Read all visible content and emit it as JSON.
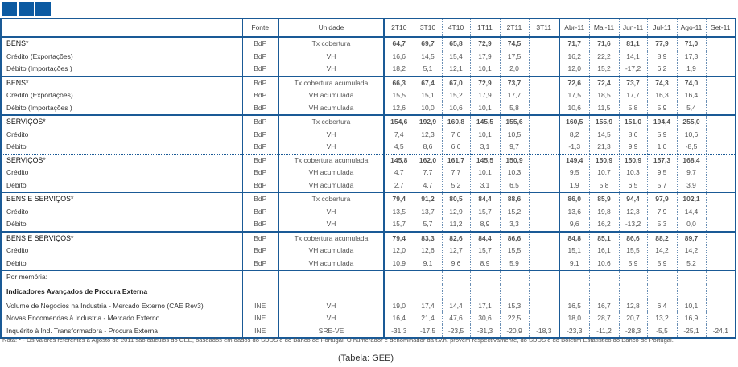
{
  "header": {
    "fonte": "Fonte",
    "unidade": "Unidade",
    "quarters": [
      "2T10",
      "3T10",
      "4T10",
      "1T11",
      "2T11",
      "3T11"
    ],
    "months": [
      "Abr-11",
      "Mai-11",
      "Jun-11",
      "Jul-11",
      "Ago-11",
      "Set-11"
    ]
  },
  "groups": [
    {
      "sep": "solid",
      "rows": [
        {
          "label": "BENS*",
          "fonte": "BdP",
          "unidade": "Tx cobertura",
          "bold": true,
          "q": [
            "64,7",
            "69,7",
            "65,8",
            "72,9",
            "74,5",
            ""
          ],
          "m": [
            "71,7",
            "71,6",
            "81,1",
            "77,9",
            "71,0",
            ""
          ]
        },
        {
          "label": "Crédito (Exportações)",
          "fonte": "BdP",
          "unidade": "VH",
          "q": [
            "16,6",
            "14,5",
            "15,4",
            "17,9",
            "17,5",
            ""
          ],
          "m": [
            "16,2",
            "22,2",
            "14,1",
            "8,9",
            "17,3",
            ""
          ]
        },
        {
          "label": "Débito (Importações )",
          "fonte": "BdP",
          "unidade": "VH",
          "q": [
            "18,2",
            "5,1",
            "12,1",
            "10,1",
            "2,0",
            ""
          ],
          "m": [
            "12,0",
            "15,2",
            "-17,2",
            "6,2",
            "1,9",
            ""
          ]
        }
      ]
    },
    {
      "sep": "solid",
      "rows": [
        {
          "label": "BENS*",
          "fonte": "BdP",
          "unidade": "Tx cobertura acumulada",
          "bold": true,
          "q": [
            "66,3",
            "67,4",
            "67,0",
            "72,9",
            "73,7",
            ""
          ],
          "m": [
            "72,6",
            "72,4",
            "73,7",
            "74,3",
            "74,0",
            ""
          ]
        },
        {
          "label": "Crédito (Exportações)",
          "fonte": "BdP",
          "unidade": "VH acumulada",
          "q": [
            "15,5",
            "15,1",
            "15,2",
            "17,9",
            "17,7",
            ""
          ],
          "m": [
            "17,5",
            "18,5",
            "17,7",
            "16,3",
            "16,4",
            ""
          ]
        },
        {
          "label": "Débito (Importações )",
          "fonte": "BdP",
          "unidade": "VH acumulada",
          "q": [
            "12,6",
            "10,0",
            "10,6",
            "10,1",
            "5,8",
            ""
          ],
          "m": [
            "10,6",
            "11,5",
            "5,8",
            "5,9",
            "5,4",
            ""
          ]
        }
      ]
    },
    {
      "sep": "dotted",
      "rows": [
        {
          "label": "SERVIÇOS*",
          "fonte": "BdP",
          "unidade": "Tx cobertura",
          "bold": true,
          "q": [
            "154,6",
            "192,9",
            "160,8",
            "145,5",
            "155,6",
            ""
          ],
          "m": [
            "160,5",
            "155,9",
            "151,0",
            "194,4",
            "255,0",
            ""
          ]
        },
        {
          "label": "Crédito",
          "fonte": "BdP",
          "unidade": "VH",
          "q": [
            "7,4",
            "12,3",
            "7,6",
            "10,1",
            "10,5",
            ""
          ],
          "m": [
            "8,2",
            "14,5",
            "8,6",
            "5,9",
            "10,6",
            ""
          ]
        },
        {
          "label": "Débito",
          "fonte": "BdP",
          "unidade": "VH",
          "q": [
            "4,5",
            "8,6",
            "6,6",
            "3,1",
            "9,7",
            ""
          ],
          "m": [
            "-1,3",
            "21,3",
            "9,9",
            "1,0",
            "-8,5",
            ""
          ]
        }
      ]
    },
    {
      "sep": "solid",
      "rows": [
        {
          "label": "SERVIÇOS*",
          "fonte": "BdP",
          "unidade": "Tx cobertura acumulada",
          "bold": true,
          "q": [
            "145,8",
            "162,0",
            "161,7",
            "145,5",
            "150,9",
            ""
          ],
          "m": [
            "149,4",
            "150,9",
            "150,9",
            "157,3",
            "168,4",
            ""
          ]
        },
        {
          "label": "Crédito",
          "fonte": "BdP",
          "unidade": "VH acumulada",
          "q": [
            "4,7",
            "7,7",
            "7,7",
            "10,1",
            "10,3",
            ""
          ],
          "m": [
            "9,5",
            "10,7",
            "10,3",
            "9,5",
            "9,7",
            ""
          ]
        },
        {
          "label": "Débito",
          "fonte": "BdP",
          "unidade": "VH acumulada",
          "q": [
            "2,7",
            "4,7",
            "5,2",
            "3,1",
            "6,5",
            ""
          ],
          "m": [
            "1,9",
            "5,8",
            "6,5",
            "5,7",
            "3,9",
            ""
          ]
        }
      ]
    },
    {
      "sep": "solid",
      "rows": [
        {
          "label": "BENS E SERVIÇOS*",
          "fonte": "BdP",
          "unidade": "Tx cobertura",
          "bold": true,
          "q": [
            "79,4",
            "91,2",
            "80,5",
            "84,4",
            "88,6",
            ""
          ],
          "m": [
            "86,0",
            "85,9",
            "94,4",
            "97,9",
            "102,1",
            ""
          ]
        },
        {
          "label": "Crédito",
          "fonte": "BdP",
          "unidade": "VH",
          "q": [
            "13,5",
            "13,7",
            "12,9",
            "15,7",
            "15,2",
            ""
          ],
          "m": [
            "13,6",
            "19,8",
            "12,3",
            "7,9",
            "14,4",
            ""
          ]
        },
        {
          "label": "Débito",
          "fonte": "BdP",
          "unidade": "VH",
          "q": [
            "15,7",
            "5,7",
            "11,2",
            "8,9",
            "3,3",
            ""
          ],
          "m": [
            "9,6",
            "16,2",
            "-13,2",
            "5,3",
            "0,0",
            ""
          ]
        }
      ]
    },
    {
      "sep": "solid",
      "rows": [
        {
          "label": "BENS E SERVIÇOS*",
          "fonte": "BdP",
          "unidade": "Tx cobertura acumulada",
          "bold": true,
          "q": [
            "79,4",
            "83,3",
            "82,6",
            "84,4",
            "86,6",
            ""
          ],
          "m": [
            "84,8",
            "85,1",
            "86,6",
            "88,2",
            "89,7",
            ""
          ]
        },
        {
          "label": "Crédito",
          "fonte": "BdP",
          "unidade": "VH acumulada",
          "q": [
            "12,0",
            "12,6",
            "12,7",
            "15,7",
            "15,5",
            ""
          ],
          "m": [
            "15,1",
            "16,1",
            "15,5",
            "14,2",
            "14,2",
            ""
          ]
        },
        {
          "label": "Débito",
          "fonte": "BdP",
          "unidade": "VH acumulada",
          "q": [
            "10,9",
            "9,1",
            "9,6",
            "8,9",
            "5,9",
            ""
          ],
          "m": [
            "9,1",
            "10,6",
            "5,9",
            "5,9",
            "5,2",
            ""
          ]
        }
      ]
    },
    {
      "sep": "solid",
      "rows": [
        {
          "label": "Por memória:",
          "fonte": "",
          "unidade": "",
          "q": [
            "",
            "",
            "",
            "",
            "",
            ""
          ],
          "m": [
            "",
            "",
            "",
            "",
            "",
            ""
          ]
        },
        {
          "label": "Indicadores Avançados de Procura Externa",
          "heading": true,
          "fonte": "",
          "unidade": "",
          "q": [
            "",
            "",
            "",
            "",
            "",
            ""
          ],
          "m": [
            "",
            "",
            "",
            "",
            "",
            ""
          ]
        },
        {
          "label": "Volume de Negocios  na Industria - Mercado Externo (CAE Rev3)",
          "fonte": "INE",
          "unidade": "VH",
          "q": [
            "19,0",
            "17,4",
            "14,4",
            "17,1",
            "15,3",
            ""
          ],
          "m": [
            "16,5",
            "16,7",
            "12,8",
            "6,4",
            "10,1",
            ""
          ]
        },
        {
          "label": "Novas  Encomendas à Industria - Mercado Externo",
          "fonte": "INE",
          "unidade": "VH",
          "q": [
            "16,4",
            "21,4",
            "47,6",
            "30,6",
            "22,5",
            ""
          ],
          "m": [
            "18,0",
            "28,7",
            "20,7",
            "13,2",
            "16,9",
            ""
          ]
        },
        {
          "label": "Inquérito à Ind. Transformadora - Procura Externa",
          "fonte": "INE",
          "unidade": "SRE-VE",
          "q": [
            "-31,3",
            "-17,5",
            "-23,5",
            "-31,3",
            "-20,9",
            "-18,3"
          ],
          "m": [
            "-23,3",
            "-11,2",
            "-28,3",
            "-5,5",
            "-25,1",
            "-24,1"
          ]
        }
      ]
    }
  ],
  "note": "Nota: * - Os valores referentes a Agosto de 2011 são cálculos do GEE, baseados em dados do SDDS e do Banco de Portugal. O numerador e denominador da t.v.h. provêm respectivamente, do SDDS e do Boletim Estatístico do Banco de Portugal.",
  "caption": "(Tabela: GEE)",
  "colors": {
    "accent": "#1a5a96",
    "squares": "#0b5aa2"
  }
}
